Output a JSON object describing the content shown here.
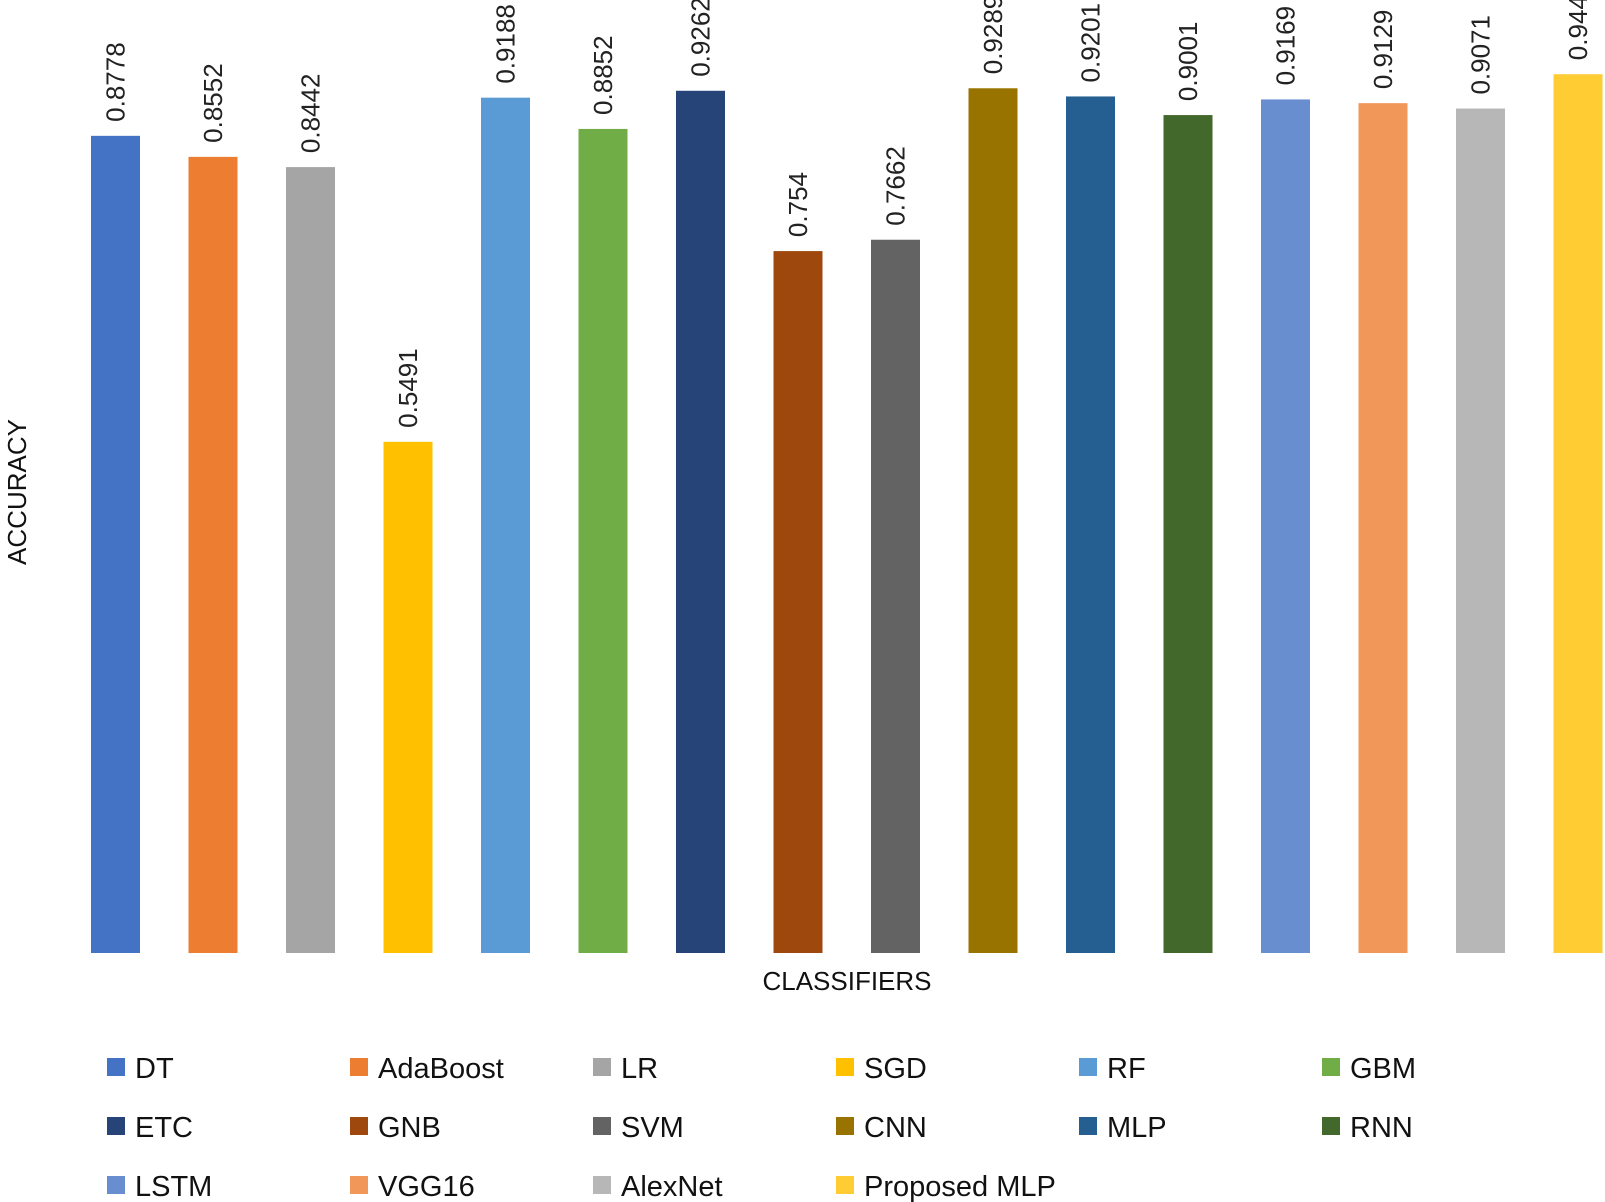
{
  "chart_data": {
    "type": "bar",
    "title": "",
    "xlabel": "CLASSIFIERS",
    "ylabel": "ACCURACY",
    "ylim": [
      0,
      0.97
    ],
    "grid": false,
    "legend_position": "bottom",
    "categories": [
      "DT",
      "AdaBoost",
      "LR",
      "SGD",
      "RF",
      "GBM",
      "ETC",
      "GNB",
      "SVM",
      "CNN",
      "MLP",
      "RNN",
      "LSTM",
      "VGG16",
      "AlexNet",
      "Proposed MLP"
    ],
    "values": [
      0.8778,
      0.8552,
      0.8442,
      0.5491,
      0.9188,
      0.8852,
      0.9262,
      0.754,
      0.7662,
      0.9289,
      0.9201,
      0.9001,
      0.9169,
      0.9129,
      0.9071,
      0.944
    ],
    "value_labels": [
      "0.8778",
      "0.8552",
      "0.8442",
      "0.5491",
      "0.9188",
      "0.8852",
      "0.9262",
      "0.754",
      "0.7662",
      "0.9289",
      "0.9201",
      "0.9001",
      "0.9169",
      "0.9129",
      "0.9071",
      "0.944"
    ],
    "colors": [
      "#4472C4",
      "#ED7D31",
      "#A5A5A5",
      "#FFC000",
      "#5B9BD5",
      "#70AD47",
      "#264478",
      "#9E480E",
      "#636363",
      "#997300",
      "#255E91",
      "#43682B",
      "#698ED0",
      "#F1975A",
      "#B7B7B7",
      "#FFCD33"
    ]
  }
}
